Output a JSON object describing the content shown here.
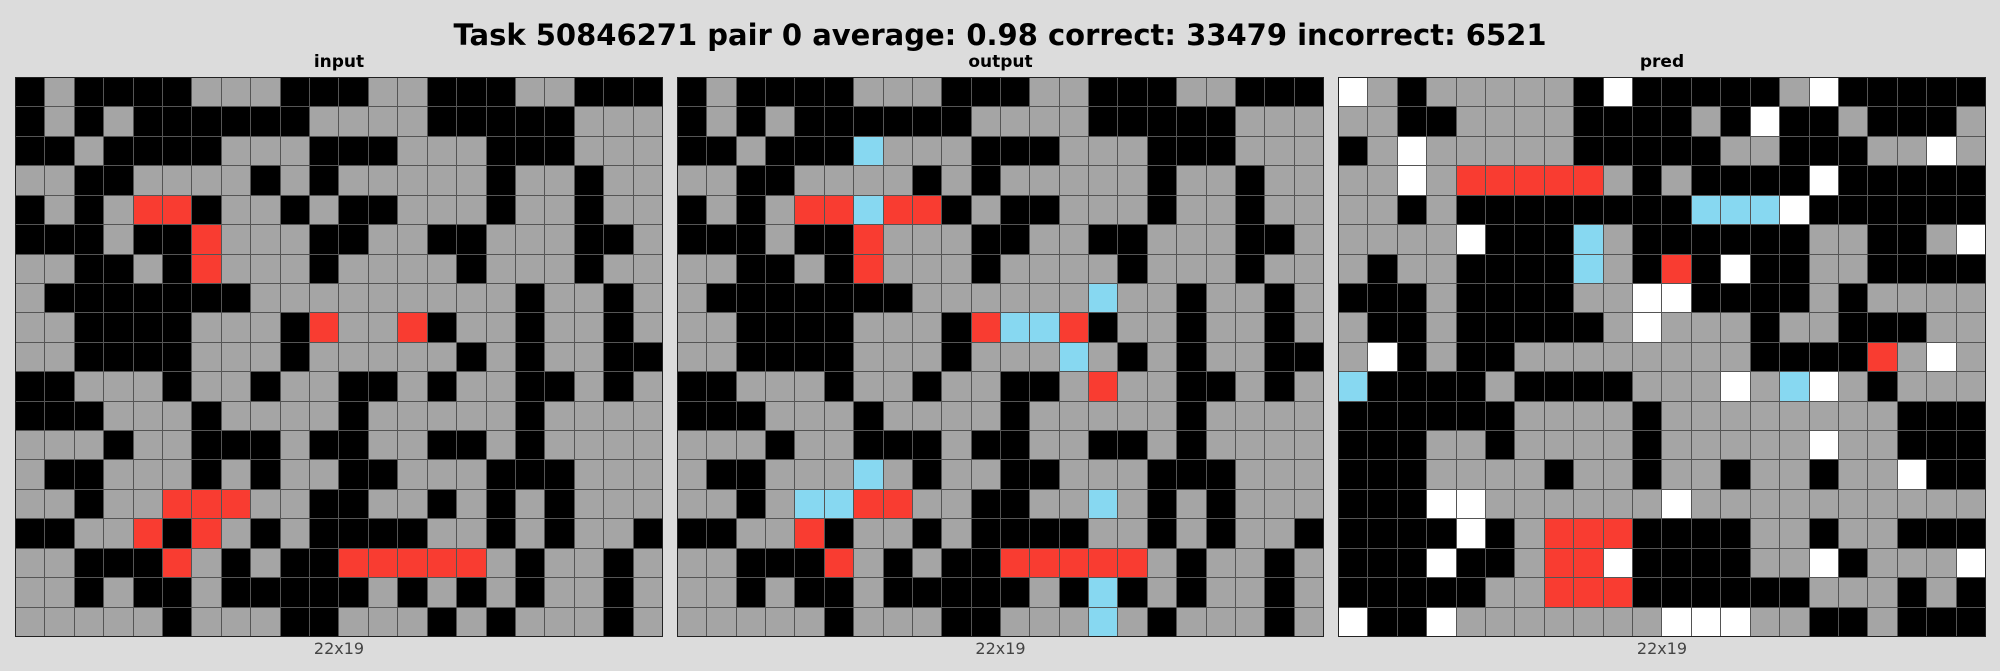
{
  "title": "Task 50846271 pair 0 average: 0.98 correct: 33479 incorrect: 6521",
  "palette": {
    "0": "#000000",
    "5": "#a5a5a5",
    "2": "#f93c31",
    "8": "#87d8f1",
    "1": "#ffffff"
  },
  "panels": [
    {
      "label": "input",
      "dims": "22x19",
      "grid": [
        "0500005550005500055000",
        "0505000000555500000555",
        "0050000555000555000555",
        "5500555505055555055055",
        "0505220550500555055055",
        "0005002555005500555005",
        "5500502555055550555055",
        "5000000055555555505505",
        "5500005550255205505505",
        "5500005550555550505500",
        "0055505505500505500505",
        "0005550555505555505555",
        "5550550005005500505555",
        "5005550505500555000555",
        "5505522255005505050555",
        "0055202505000055050550",
        "5500025050022222505505",
        "5505005000005050505505",
        "5555505550055505055505"
      ]
    },
    {
      "label": "output",
      "dims": "22x19",
      "grid": [
        "0500005550005500055000",
        "0505000000555500000555",
        "0050008555000555000555",
        "5500555505055555055055",
        "0505228220500555055055",
        "0005002555005500555005",
        "5500502555055550555055",
        "5000000055555585505505",
        "5500005550288205505505",
        "5500005550555850505500",
        "0055505505500525500505",
        "0005550555505555505555",
        "5550550005005500505555",
        "5005558505500555000555",
        "5505882255005585050555",
        "0055205505000055050550",
        "5500025050022222505505",
        "5505005000005080505505",
        "5555505550055585055505"
      ]
    },
    {
      "label": "pred",
      "dims": "22x19",
      "grid": [
        "1505555501000005100000",
        "5500555500005010050005",
        "0515555500000550005515",
        "5515222225050000100000",
        "5505000000008881000000",
        "5555100085000000550051",
        "5055000085020100550000",
        "0005000055110000505555",
        "5005000005155505500055",
        "5105005555555500002515",
        "8000050000555158150555",
        "0000005555055555555000",
        "0005505555055555155000",
        "0005555055055055055100",
        "0001155555515555555555",
        "0000105222000055055000",
        "0001005221000055105551",
        "0000055222000000555050",
        "1001555555511155005000"
      ]
    }
  ]
}
